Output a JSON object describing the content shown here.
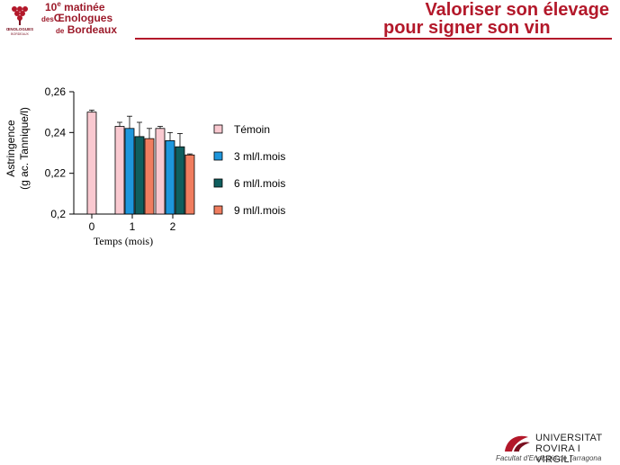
{
  "header": {
    "logo_text": "ŒNOLOGUES DE BORDEAUX",
    "event_number": "10",
    "event_number_sup": "e",
    "event_line1": "matinée",
    "event_line2_prefix": "des",
    "event_line2": "Œnologues",
    "event_line3_prefix": "de",
    "event_line3": "Bordeaux",
    "title_line1": "Valoriser son élevage",
    "title_line2": "pour signer son vin"
  },
  "footer": {
    "line1": "UNIVERSITAT",
    "line2": "ROVIRA I VIRGILI",
    "line3": "Facultat d'Enologia de Tarragona"
  },
  "colors": {
    "brand": "#b3182a",
    "temoin": "#f9c9d0",
    "ml3": "#1e96dc",
    "ml6": "#0f5e5e",
    "ml9": "#f07d5f"
  },
  "chart_data": {
    "type": "bar",
    "title": "",
    "xlabel": "Temps (mois)",
    "ylabel_line1": "Astringence",
    "ylabel_line2": "(g ac. Tannique/l)",
    "ylim": [
      0.2,
      0.26
    ],
    "yticks": [
      0.2,
      0.22,
      0.24,
      0.26
    ],
    "ytick_labels": [
      "0,2",
      "0,22",
      "0,24",
      "0,26"
    ],
    "categories": [
      "0",
      "1",
      "2"
    ],
    "legend_position": "right",
    "series": [
      {
        "name": "Témoin",
        "color": "#f9c9d0",
        "values": [
          0.25,
          0.243,
          0.242
        ],
        "errors": [
          0.001,
          0.002,
          0.001
        ]
      },
      {
        "name": "3 ml/l.mois",
        "color": "#1e96dc",
        "values": [
          null,
          0.242,
          0.236
        ],
        "errors": [
          null,
          0.006,
          0.004
        ]
      },
      {
        "name": "6 ml/l.mois",
        "color": "#0f5e5e",
        "values": [
          null,
          0.238,
          0.233
        ],
        "errors": [
          null,
          0.007,
          0.0065
        ]
      },
      {
        "name": "9 ml/l.mois",
        "color": "#f07d5f",
        "values": [
          null,
          0.237,
          0.229
        ],
        "errors": [
          null,
          0.005,
          0.0005
        ]
      }
    ]
  }
}
